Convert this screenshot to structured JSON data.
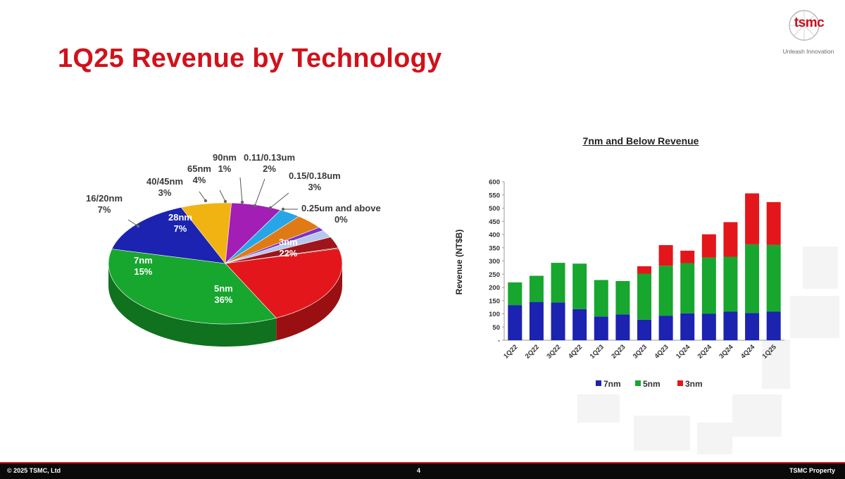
{
  "slide": {
    "title": "1Q25 Revenue by Technology"
  },
  "logo": {
    "word": "tsmc",
    "tagline": "Unleash Innovation"
  },
  "footer": {
    "copyright": "© 2025 TSMC, Ltd",
    "page": "4",
    "property": "TSMC Property"
  },
  "colors": {
    "title_red": "#d0121b",
    "n7": "#1b23b0",
    "n5": "#17a62e",
    "n3": "#e3171b"
  },
  "chart_data": [
    {
      "type": "pie",
      "title": "",
      "slices": [
        {
          "name": "3nm",
          "value": 22,
          "label": "22%",
          "color": "#e3171b"
        },
        {
          "name": "5nm",
          "value": 36,
          "label": "36%",
          "color": "#17a62e"
        },
        {
          "name": "7nm",
          "value": 15,
          "label": "15%",
          "color": "#1b23b0"
        },
        {
          "name": "16/20nm",
          "value": 7,
          "label": "7%",
          "color": "#f0b312"
        },
        {
          "name": "28nm",
          "value": 7,
          "label": "7%",
          "color": "#a21eb4"
        },
        {
          "name": "40/45nm",
          "value": 3,
          "label": "3%",
          "color": "#26a6e6"
        },
        {
          "name": "65nm",
          "value": 4,
          "label": "4%",
          "color": "#e07a14"
        },
        {
          "name": "90nm",
          "value": 1,
          "label": "1%",
          "color": "#7b35c8"
        },
        {
          "name": "0.11/0.13um",
          "value": 2,
          "label": "2%",
          "color": "#b8c8ec"
        },
        {
          "name": "0.15/0.18um",
          "value": 3,
          "label": "3%",
          "color": "#a0141c"
        },
        {
          "name": "0.25um and above",
          "value": 0,
          "label": "0%",
          "color": "#5c3a14"
        }
      ]
    },
    {
      "type": "bar",
      "stacked": true,
      "title": "7nm and Below Revenue",
      "ylabel": "Revenue (NT$B)",
      "xlabel": "",
      "ylim": [
        0,
        600
      ],
      "yticks": [
        "-",
        "50",
        "100",
        "150",
        "200",
        "250",
        "300",
        "350",
        "400",
        "450",
        "500",
        "550",
        "600"
      ],
      "categories": [
        "1Q22",
        "2Q22",
        "3Q22",
        "4Q22",
        "1Q23",
        "2Q23",
        "3Q23",
        "4Q23",
        "1Q24",
        "2Q24",
        "3Q24",
        "4Q24",
        "1Q25"
      ],
      "series": [
        {
          "name": "7nm",
          "color": "#1b23b0",
          "values": [
            133,
            145,
            143,
            118,
            90,
            98,
            78,
            93,
            102,
            100,
            108,
            103,
            108
          ]
        },
        {
          "name": "5nm",
          "color": "#17a62e",
          "values": [
            86,
            99,
            150,
            172,
            138,
            126,
            174,
            189,
            190,
            213,
            208,
            260,
            253
          ]
        },
        {
          "name": "3nm",
          "color": "#e3171b",
          "values": [
            0,
            0,
            0,
            0,
            0,
            0,
            28,
            78,
            47,
            88,
            131,
            193,
            162
          ]
        }
      ],
      "legend_position": "bottom"
    }
  ]
}
